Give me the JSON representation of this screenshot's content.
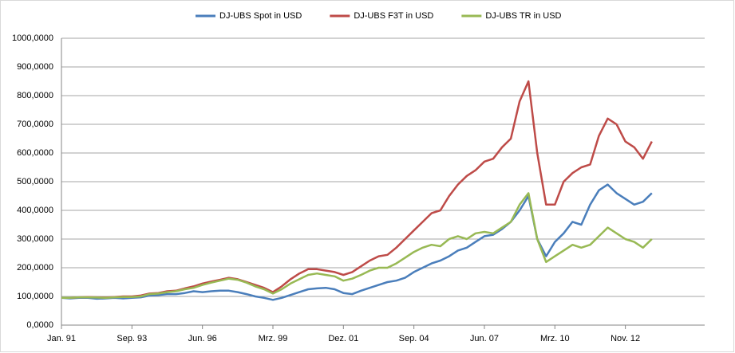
{
  "chart_data": {
    "type": "line",
    "categories": [
      "Jan. 91",
      null,
      null,
      null,
      null,
      null,
      null,
      null,
      "Sep. 93",
      null,
      null,
      null,
      null,
      null,
      null,
      null,
      "Jun. 96",
      null,
      null,
      null,
      null,
      null,
      null,
      null,
      "Mrz. 99",
      null,
      null,
      null,
      null,
      null,
      null,
      null,
      "Dez. 01",
      null,
      null,
      null,
      null,
      null,
      null,
      null,
      "Sep. 04",
      null,
      null,
      null,
      null,
      null,
      null,
      null,
      "Jun. 07",
      null,
      null,
      null,
      null,
      null,
      null,
      null,
      "Mrz. 10",
      null,
      null,
      null,
      null,
      null,
      null,
      null,
      "Nov. 12",
      null,
      null,
      null,
      null,
      null,
      null,
      null,
      null,
      null
    ],
    "series": [
      {
        "name": "DJ-UBS Spot in USD",
        "color": "#4a7ebb",
        "values": [
          95,
          93,
          95,
          95,
          92,
          93,
          95,
          93,
          95,
          97,
          103,
          105,
          108,
          108,
          112,
          118,
          115,
          118,
          120,
          120,
          115,
          108,
          100,
          95,
          88,
          95,
          105,
          115,
          125,
          128,
          130,
          125,
          112,
          108,
          120,
          130,
          140,
          150,
          155,
          165,
          185,
          200,
          215,
          225,
          240,
          260,
          270,
          290,
          310,
          315,
          335,
          360,
          400,
          450,
          300,
          240,
          290,
          320,
          360,
          350,
          420,
          470,
          490,
          460,
          440,
          420,
          430,
          460,
          null,
          null,
          null,
          null,
          null,
          null
        ]
      },
      {
        "name": "DJ-UBS F3T in USD",
        "color": "#be4b48",
        "values": [
          95,
          95,
          97,
          98,
          97,
          96,
          98,
          100,
          100,
          103,
          110,
          112,
          118,
          120,
          128,
          135,
          145,
          152,
          158,
          165,
          160,
          150,
          140,
          130,
          115,
          135,
          160,
          180,
          195,
          195,
          190,
          185,
          175,
          185,
          205,
          225,
          240,
          245,
          270,
          300,
          330,
          360,
          390,
          400,
          450,
          490,
          520,
          540,
          570,
          580,
          620,
          650,
          780,
          850,
          600,
          420,
          420,
          500,
          530,
          550,
          560,
          660,
          720,
          700,
          640,
          620,
          580,
          640,
          null,
          null,
          null,
          null,
          null,
          null
        ]
      },
      {
        "name": "DJ-UBS TR in USD",
        "color": "#98b954",
        "values": [
          95,
          95,
          97,
          97,
          96,
          95,
          97,
          98,
          98,
          100,
          108,
          110,
          115,
          118,
          125,
          130,
          140,
          148,
          155,
          162,
          158,
          148,
          135,
          125,
          110,
          125,
          145,
          160,
          175,
          180,
          175,
          170,
          155,
          162,
          175,
          190,
          200,
          200,
          215,
          235,
          255,
          270,
          280,
          275,
          300,
          310,
          300,
          320,
          325,
          320,
          340,
          360,
          420,
          460,
          300,
          220,
          240,
          260,
          280,
          270,
          280,
          310,
          340,
          320,
          300,
          290,
          270,
          300,
          null,
          null,
          null,
          null,
          null,
          null
        ]
      }
    ],
    "ylim": [
      0,
      1000
    ],
    "yticks": [
      {
        "value": 0,
        "label": "0,0000"
      },
      {
        "value": 100,
        "label": "100,0000"
      },
      {
        "value": 200,
        "label": "200,0000"
      },
      {
        "value": 300,
        "label": "300,0000"
      },
      {
        "value": 400,
        "label": "400,0000"
      },
      {
        "value": 500,
        "label": "500,0000"
      },
      {
        "value": 600,
        "label": "600,0000"
      },
      {
        "value": 700,
        "label": "700,0000"
      },
      {
        "value": 800,
        "label": "800,0000"
      },
      {
        "value": 900,
        "label": "900,0000"
      },
      {
        "value": 1000,
        "label": "1000,0000"
      }
    ],
    "grid": true,
    "legend": "top"
  }
}
